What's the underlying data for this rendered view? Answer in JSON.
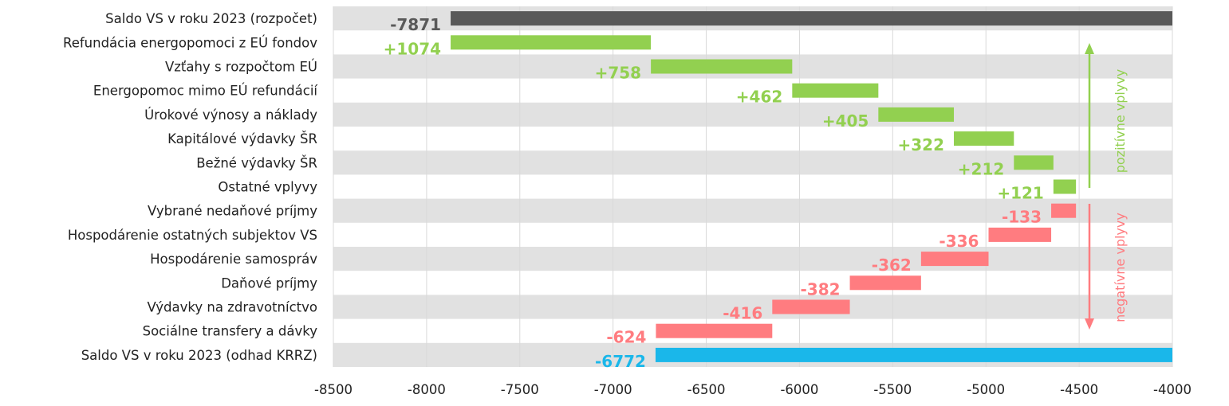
{
  "chart_data": {
    "type": "bar",
    "subtype": "waterfall",
    "orientation": "horizontal",
    "xlim": [
      -8500,
      -4000
    ],
    "x_ticks": [
      "-8500",
      "-8000",
      "-7500",
      "-7000",
      "-6500",
      "-6000",
      "-5500",
      "-5000",
      "-4500",
      "-4000"
    ],
    "grid": "vertical",
    "categories": [
      "Saldo VS v roku 2023 (rozpočet)",
      "Refundácia energopomoci z EÚ fondov",
      "Vzťahy s rozpočtom EÚ",
      "Energopomoc mimo EÚ refundácií",
      "Úrokové výnosy a náklady",
      "Kapitálové výdavky ŠR",
      "Bežné výdavky ŠR",
      "Ostatné vplyvy",
      "Vybrané nedaňové príjmy",
      "Hospodárenie ostatných subjektov VS",
      "Hospodárenie samospráv",
      "Daňové príjmy",
      "Výdavky na zdravotníctvo",
      "Sociálne transfery a dávky",
      "Saldo VS v roku 2023 (odhad KRRZ)"
    ],
    "values": [
      -7871,
      1074,
      758,
      462,
      405,
      322,
      212,
      121,
      -133,
      -336,
      -362,
      -382,
      -416,
      -624,
      -6772
    ],
    "value_labels": [
      "-7871",
      "+1074",
      "+758",
      "+462",
      "+405",
      "+322",
      "+212",
      "+121",
      "-133",
      "-336",
      "-362",
      "-382",
      "-416",
      "-624",
      "-6772"
    ],
    "kinds": [
      "total",
      "positive",
      "positive",
      "positive",
      "positive",
      "positive",
      "positive",
      "positive",
      "negative",
      "negative",
      "negative",
      "negative",
      "negative",
      "negative",
      "total"
    ],
    "annotations": {
      "positive": "pozitívne vplyvy",
      "negative": "negatívne vplyvy"
    },
    "colors": {
      "start_total": "#595959",
      "positive": "#92d050",
      "negative": "#ff7c80",
      "end_total": "#1ab7ea",
      "band": "#e1e1e1",
      "grid": "#d9d9d9",
      "text": "#222222"
    }
  }
}
